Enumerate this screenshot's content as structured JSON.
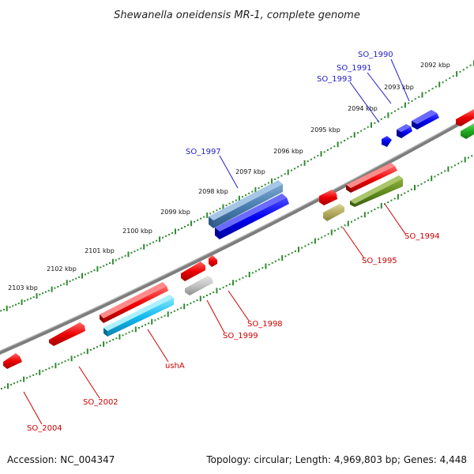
{
  "title": "Shewanella oneidensis MR-1, complete genome",
  "footer": {
    "accession": "Accession: NC_004347",
    "topology": "Topology: circular; Length: 4,969,803 bp; Genes: 4,448"
  },
  "ticks": [
    "2092 kbp",
    "2093 kbp",
    "2094 kbp",
    "2095 kbp",
    "2096 kbp",
    "2097 kbp",
    "2098 kbp",
    "2099 kbp",
    "2100 kbp",
    "2101 kbp",
    "2102 kbp",
    "2103 kbp"
  ],
  "genes_top": [
    "SO_1990",
    "SO_1991",
    "SO_1993",
    "SO_1997"
  ],
  "genes_bottom": [
    "SO_1994",
    "SO_1995",
    "SO_1998",
    "SO_1999",
    "ushA",
    "SO_2002",
    "SO_2004"
  ],
  "colors": {
    "plus_label": "#1f1fcc",
    "minus_label": "#cc0000",
    "backbone": "#808080",
    "ruler": "#2f8a2f"
  }
}
